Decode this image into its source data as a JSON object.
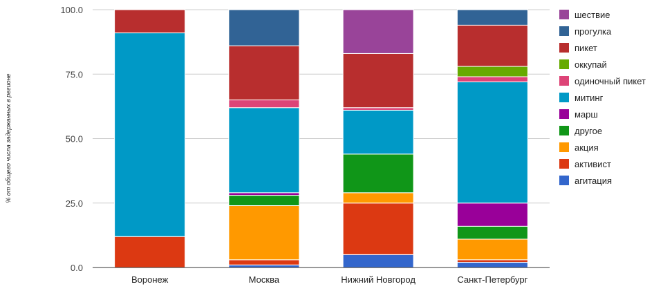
{
  "chart_data": {
    "type": "bar",
    "stacked": true,
    "title": "",
    "xlabel": "",
    "ylabel": "% от общего числа задержанных в регионе",
    "ylim": [
      0,
      100
    ],
    "yticks": [
      "0.0",
      "25.0",
      "50.0",
      "75.0",
      "100.0"
    ],
    "grid": true,
    "legend_position": "right",
    "categories": [
      "Воронеж",
      "Москва",
      "Нижний Новгород",
      "Санкт-Петербург"
    ],
    "series": [
      {
        "name": "агитация",
        "color": "#3366cc",
        "values": [
          0,
          1,
          5,
          2
        ]
      },
      {
        "name": "активист",
        "color": "#dc3912",
        "values": [
          12,
          2,
          20,
          1
        ]
      },
      {
        "name": "акция",
        "color": "#ff9900",
        "values": [
          0,
          21,
          4,
          8
        ]
      },
      {
        "name": "другое",
        "color": "#109618",
        "values": [
          0,
          4,
          15,
          5
        ]
      },
      {
        "name": "марш",
        "color": "#990099",
        "values": [
          0,
          1,
          0,
          9
        ]
      },
      {
        "name": "митинг",
        "color": "#0099c6",
        "values": [
          79,
          33,
          17,
          47
        ]
      },
      {
        "name": "одиночный пикет",
        "color": "#dd4477",
        "values": [
          0,
          3,
          1,
          2
        ]
      },
      {
        "name": "оккупай",
        "color": "#66aa00",
        "values": [
          0,
          0,
          0,
          4
        ]
      },
      {
        "name": "пикет",
        "color": "#b82e2e",
        "values": [
          9,
          21,
          21,
          16
        ]
      },
      {
        "name": "прогулка",
        "color": "#316395",
        "values": [
          0,
          14,
          0,
          6
        ]
      },
      {
        "name": "шествие",
        "color": "#994499",
        "values": [
          0,
          0,
          17,
          0
        ]
      }
    ]
  }
}
